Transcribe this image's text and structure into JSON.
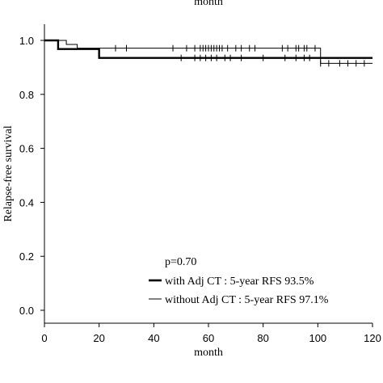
{
  "chart_data": {
    "type": "line",
    "top_cut_label": "month",
    "xlabel": "month",
    "ylabel": "Relapse-free survival",
    "xlim": [
      0,
      120
    ],
    "ylim": [
      0,
      1.0
    ],
    "x_ticks": [
      0,
      20,
      40,
      60,
      80,
      100,
      120
    ],
    "y_ticks": [
      "0.0",
      "0.2",
      "0.4",
      "0.6",
      "0.8",
      "1.0"
    ],
    "grid": false,
    "annotation": "p=0.70",
    "legend_position": "bottom-right",
    "series": [
      {
        "name": "with Adj CT : 5-year RFS 93.5%",
        "style": "thick",
        "steps": [
          [
            0,
            1.0
          ],
          [
            5,
            0.968
          ],
          [
            20,
            0.935
          ],
          [
            120,
            0.935
          ]
        ],
        "censored": [
          [
            50,
            0.935
          ],
          [
            55,
            0.935
          ],
          [
            57,
            0.935
          ],
          [
            59,
            0.935
          ],
          [
            61,
            0.935
          ],
          [
            63,
            0.935
          ],
          [
            66,
            0.935
          ],
          [
            68,
            0.935
          ],
          [
            72,
            0.935
          ],
          [
            80,
            0.935
          ],
          [
            88,
            0.935
          ],
          [
            92,
            0.935
          ],
          [
            95,
            0.935
          ],
          [
            97,
            0.935
          ]
        ]
      },
      {
        "name": "without Adj CT : 5-year RFS 97.1%",
        "style": "thin",
        "steps": [
          [
            0,
            1.0
          ],
          [
            8,
            0.985
          ],
          [
            12,
            0.971
          ],
          [
            100,
            0.971
          ],
          [
            101,
            0.915
          ],
          [
            120,
            0.915
          ]
        ],
        "censored": [
          [
            26,
            0.971
          ],
          [
            30,
            0.971
          ],
          [
            47,
            0.971
          ],
          [
            52,
            0.971
          ],
          [
            55,
            0.971
          ],
          [
            57,
            0.971
          ],
          [
            58,
            0.971
          ],
          [
            59,
            0.971
          ],
          [
            60,
            0.971
          ],
          [
            61,
            0.971
          ],
          [
            62,
            0.971
          ],
          [
            63,
            0.971
          ],
          [
            64,
            0.971
          ],
          [
            65,
            0.971
          ],
          [
            67,
            0.971
          ],
          [
            70,
            0.971
          ],
          [
            72,
            0.971
          ],
          [
            75,
            0.971
          ],
          [
            77,
            0.971
          ],
          [
            87,
            0.971
          ],
          [
            89,
            0.971
          ],
          [
            92,
            0.971
          ],
          [
            93,
            0.971
          ],
          [
            95,
            0.971
          ],
          [
            96,
            0.971
          ],
          [
            99,
            0.971
          ],
          [
            101,
            0.915
          ],
          [
            104,
            0.915
          ],
          [
            108,
            0.915
          ],
          [
            111,
            0.915
          ],
          [
            114,
            0.915
          ],
          [
            117,
            0.915
          ]
        ]
      }
    ]
  }
}
